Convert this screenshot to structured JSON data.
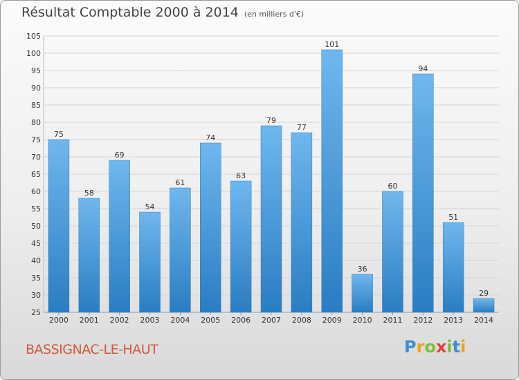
{
  "chart_data": {
    "type": "bar",
    "title": "Résultat Comptable 2000 à 2014",
    "unit": "(en milliers d'€)",
    "categories": [
      "2000",
      "2001",
      "2002",
      "2003",
      "2004",
      "2005",
      "2006",
      "2007",
      "2008",
      "2009",
      "2010",
      "2011",
      "2012",
      "2013",
      "2014"
    ],
    "values": [
      75,
      58,
      69,
      54,
      61,
      74,
      63,
      79,
      77,
      101,
      36,
      60,
      94,
      51,
      29
    ],
    "ylim": [
      25,
      105
    ],
    "ytick_step": 5,
    "grid": true,
    "colors": {
      "bar_light": "#6fb7ee",
      "bar_dark": "#2a7dc2",
      "grid": "#d4d4d4",
      "axis_text": "#333333"
    }
  },
  "place_name": "BASSIGNAC-LE-HAUT",
  "logo": {
    "letters": [
      "P",
      "r",
      "o",
      "x",
      "i",
      "t",
      "i"
    ],
    "colors": [
      "#3a8fd6",
      "#f0a21e",
      "#7cbf3b",
      "#e2403a",
      "#7cbf3b",
      "#3a8fd6",
      "#f0a21e"
    ]
  }
}
